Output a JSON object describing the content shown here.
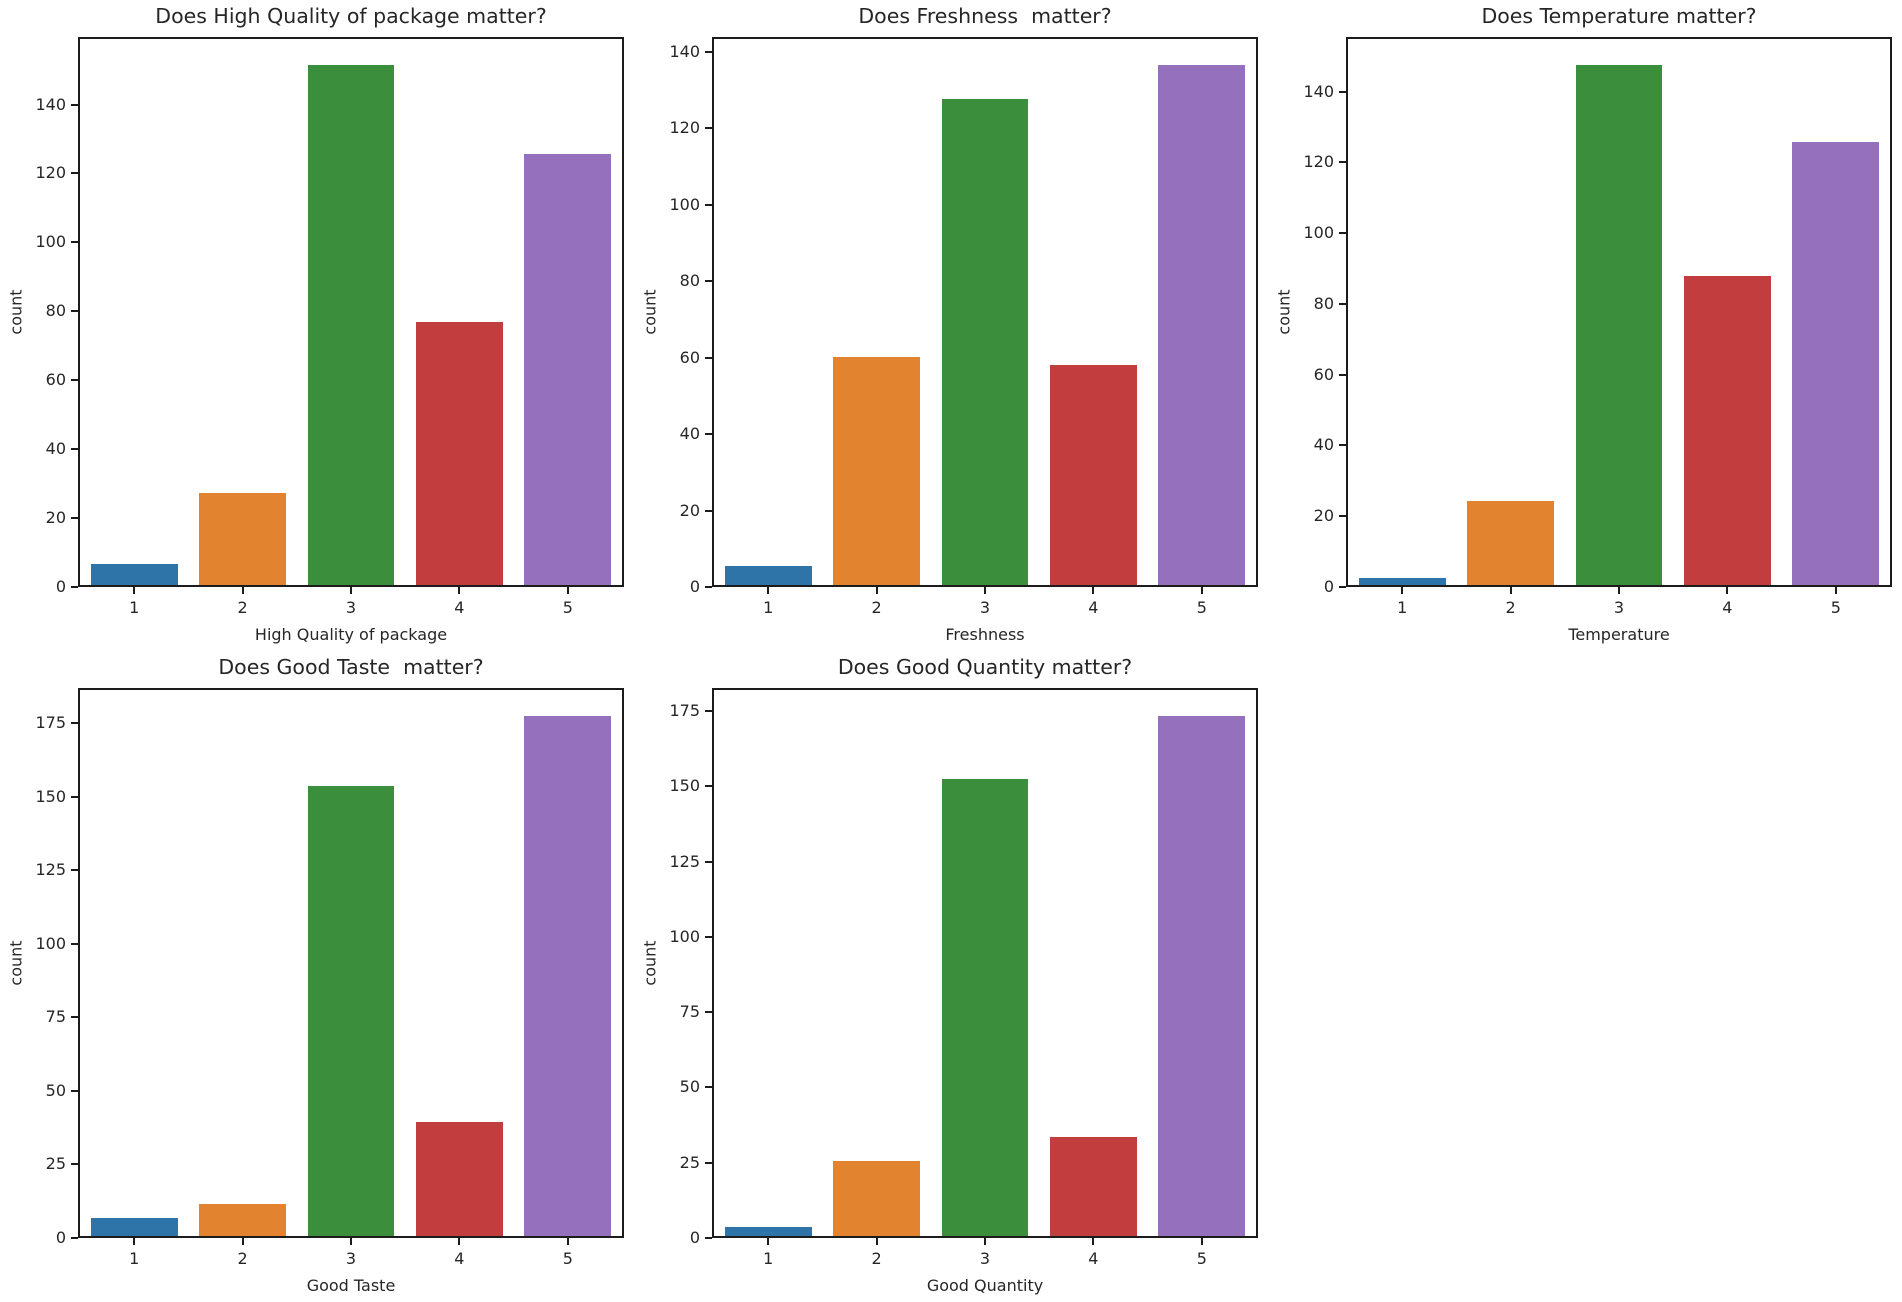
{
  "figure": {
    "background": "#ffffff",
    "text_color": "#262626",
    "spine_color": "#1c1c1c",
    "bar_colors": [
      "#2e74a9",
      "#e1832f",
      "#3b8e3c",
      "#c23d3e",
      "#9470bd"
    ],
    "grid": false,
    "legend": false,
    "layout": "2 rows x 3 columns, last cell empty"
  },
  "chart_data": [
    {
      "type": "bar",
      "title": "Does High Quality of package matter?",
      "xlabel": "High Quality of package",
      "ylabel": "count",
      "categories": [
        "1",
        "2",
        "3",
        "4",
        "5"
      ],
      "values": [
        6,
        27,
        152,
        77,
        126
      ],
      "yticks": [
        0,
        20,
        40,
        60,
        80,
        100,
        120,
        140
      ],
      "ylim": [
        0,
        159.6
      ]
    },
    {
      "type": "bar",
      "title": "Does Freshness  matter?",
      "xlabel": "Freshness",
      "ylabel": "count",
      "categories": [
        "1",
        "2",
        "3",
        "4",
        "5"
      ],
      "values": [
        5,
        60,
        128,
        58,
        137
      ],
      "yticks": [
        0,
        20,
        40,
        60,
        80,
        100,
        120,
        140
      ],
      "ylim": [
        0,
        143.9
      ]
    },
    {
      "type": "bar",
      "title": "Does Temperature matter?",
      "xlabel": "Temperature",
      "ylabel": "count",
      "categories": [
        "1",
        "2",
        "3",
        "4",
        "5"
      ],
      "values": [
        2,
        24,
        148,
        88,
        126
      ],
      "yticks": [
        0,
        20,
        40,
        60,
        80,
        100,
        120,
        140
      ],
      "ylim": [
        0,
        155.4
      ]
    },
    {
      "type": "bar",
      "title": "Does Good Taste  matter?",
      "xlabel": "Good Taste",
      "ylabel": "count",
      "categories": [
        "1",
        "2",
        "3",
        "4",
        "5"
      ],
      "values": [
        6,
        11,
        154,
        39,
        178
      ],
      "yticks": [
        0,
        25,
        50,
        75,
        100,
        125,
        150,
        175
      ],
      "ylim": [
        0,
        186.9
      ]
    },
    {
      "type": "bar",
      "title": "Does Good Quantity matter?",
      "xlabel": "Good Quantity",
      "ylabel": "count",
      "categories": [
        "1",
        "2",
        "3",
        "4",
        "5"
      ],
      "values": [
        3,
        25,
        153,
        33,
        174
      ],
      "yticks": [
        0,
        25,
        50,
        75,
        100,
        125,
        150,
        175
      ],
      "ylim": [
        0,
        182.7
      ]
    }
  ]
}
